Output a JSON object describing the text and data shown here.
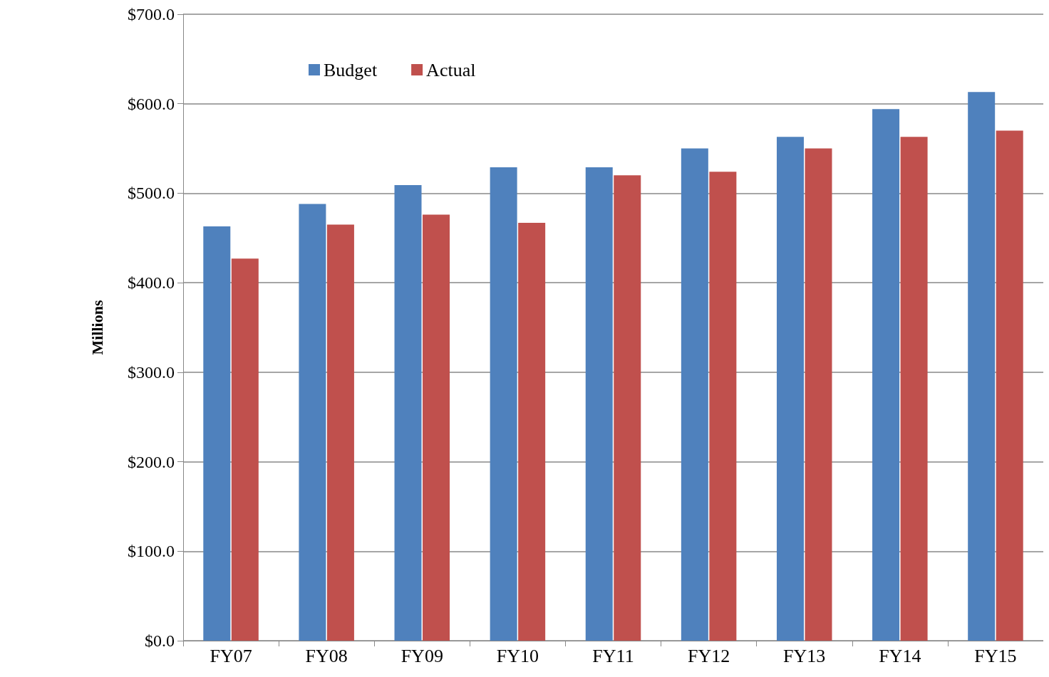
{
  "chart_data": {
    "type": "bar",
    "ylabel": "Millions",
    "categories": [
      "FY07",
      "FY08",
      "FY09",
      "FY10",
      "FY11",
      "FY12",
      "FY13",
      "FY14",
      "FY15"
    ],
    "series": [
      {
        "name": "Budget",
        "color": "#4f81bd",
        "values": [
          463,
          488,
          509,
          529,
          529,
          550,
          563,
          594,
          613
        ]
      },
      {
        "name": "Actual",
        "color": "#c0504d",
        "values": [
          427,
          465,
          476,
          467,
          520,
          524,
          550,
          563,
          570
        ]
      }
    ],
    "ylim": [
      0,
      700
    ],
    "yticks": [
      {
        "value": 0,
        "label": "$0.0"
      },
      {
        "value": 100,
        "label": "$100.0"
      },
      {
        "value": 200,
        "label": "$200.0"
      },
      {
        "value": 300,
        "label": "$300.0"
      },
      {
        "value": 400,
        "label": "$400.0"
      },
      {
        "value": 500,
        "label": "$500.0"
      },
      {
        "value": 600,
        "label": "$600.0"
      },
      {
        "value": 700,
        "label": "$700.0"
      }
    ],
    "grid": "y",
    "legend": "top left"
  }
}
